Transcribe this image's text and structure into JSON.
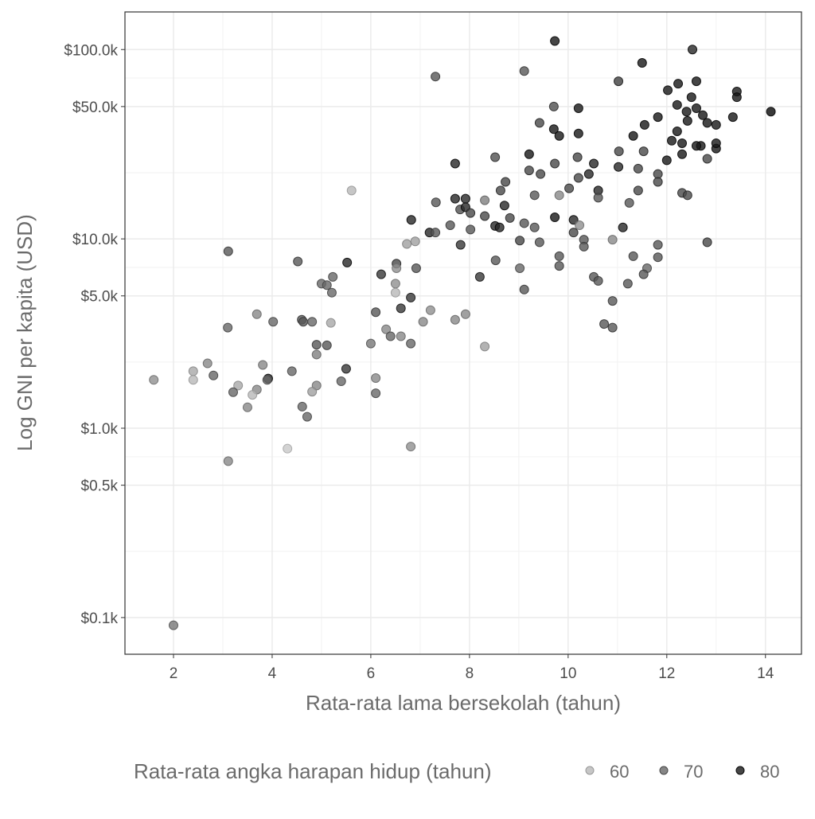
{
  "chart_data": {
    "type": "scatter",
    "title": "",
    "xlabel": "Rata-rata lama bersekolah (tahun)",
    "ylabel": "Log GNI per kapita (USD)",
    "x_scale": "linear",
    "y_scale": "log10",
    "xlim": [
      1.016,
      14.73
    ],
    "ylim": [
      64,
      158000
    ],
    "x_ticks": [
      2,
      4,
      6,
      8,
      10,
      12,
      14
    ],
    "x_tick_labels": [
      "2",
      "4",
      "6",
      "8",
      "10",
      "12",
      "14"
    ],
    "y_ticks": [
      100,
      500,
      1000,
      5000,
      10000,
      50000,
      100000
    ],
    "y_tick_labels": [
      "$0.1k",
      "$0.5k",
      "$1.0k",
      "$5.0k",
      "$10.0k",
      "$50.0k",
      "$100.0k"
    ],
    "grid": true,
    "legend": {
      "title": "Rata-rata angka harapan hidup (tahun)",
      "placement": "bottom",
      "entries": [
        {
          "label": "60",
          "value": 60
        },
        {
          "label": "70",
          "value": 70
        },
        {
          "label": "80",
          "value": 80
        }
      ]
    },
    "colors": {
      "low": "#c4c4c4",
      "high": "#0a0a0a",
      "panel_border": "#333333",
      "grid": "#ebebeb"
    },
    "points": [
      [
        9.73,
        111000,
        80
      ],
      [
        11.5,
        85000,
        80
      ],
      [
        12.52,
        100000,
        78
      ],
      [
        7.31,
        72000,
        72
      ],
      [
        9.11,
        77000,
        72
      ],
      [
        11.02,
        68000,
        75
      ],
      [
        12.6,
        68000,
        80
      ],
      [
        12.02,
        61000,
        80
      ],
      [
        12.23,
        66000,
        80
      ],
      [
        13.42,
        60000,
        80
      ],
      [
        13.42,
        56000,
        80
      ],
      [
        14.11,
        47000,
        82
      ],
      [
        9.71,
        50000,
        73
      ],
      [
        10.21,
        49000,
        80
      ],
      [
        12.21,
        51000,
        80
      ],
      [
        12.4,
        47000,
        80
      ],
      [
        12.6,
        49000,
        80
      ],
      [
        12.73,
        45000,
        80
      ],
      [
        12.5,
        56000,
        80
      ],
      [
        11.82,
        44000,
        80
      ],
      [
        13.34,
        44000,
        80
      ],
      [
        12.82,
        41000,
        80
      ],
      [
        13.0,
        40000,
        80
      ],
      [
        12.42,
        42000,
        80
      ],
      [
        9.42,
        41000,
        74
      ],
      [
        11.55,
        40000,
        80
      ],
      [
        9.71,
        38000,
        80
      ],
      [
        9.82,
        35000,
        80
      ],
      [
        10.21,
        36000,
        80
      ],
      [
        12.21,
        37000,
        80
      ],
      [
        11.32,
        35000,
        80
      ],
      [
        12.1,
        33000,
        80
      ],
      [
        12.31,
        32000,
        80
      ],
      [
        12.69,
        31000,
        80
      ],
      [
        12.6,
        31000,
        80
      ],
      [
        13.0,
        30000,
        80
      ],
      [
        13.0,
        32000,
        80
      ],
      [
        11.53,
        29000,
        74
      ],
      [
        11.03,
        29000,
        74
      ],
      [
        9.21,
        28000,
        80
      ],
      [
        10.19,
        27000,
        74
      ],
      [
        8.52,
        27000,
        73
      ],
      [
        12.31,
        28000,
        80
      ],
      [
        12.0,
        26000,
        80
      ],
      [
        12.82,
        26500,
        74
      ],
      [
        7.71,
        25000,
        78
      ],
      [
        9.73,
        25000,
        74
      ],
      [
        10.52,
        25000,
        78
      ],
      [
        11.02,
        24000,
        78
      ],
      [
        9.21,
        23000,
        74
      ],
      [
        9.44,
        22000,
        74
      ],
      [
        10.42,
        22000,
        78
      ],
      [
        11.42,
        23500,
        74
      ],
      [
        11.82,
        22000,
        74
      ],
      [
        10.21,
        21000,
        74
      ],
      [
        11.82,
        20000,
        74
      ],
      [
        8.73,
        20000,
        74
      ],
      [
        10.02,
        18500,
        74
      ],
      [
        8.63,
        18000,
        74
      ],
      [
        10.61,
        18000,
        78
      ],
      [
        11.42,
        18000,
        74
      ],
      [
        12.31,
        17500,
        74
      ],
      [
        12.42,
        17000,
        74
      ],
      [
        5.61,
        18000,
        60
      ],
      [
        9.82,
        17000,
        66
      ],
      [
        9.32,
        17000,
        72
      ],
      [
        7.32,
        15600,
        72
      ],
      [
        7.71,
        16300,
        78
      ],
      [
        7.92,
        16300,
        78
      ],
      [
        8.31,
        16000,
        67
      ],
      [
        10.61,
        16500,
        72
      ],
      [
        11.24,
        15500,
        72
      ],
      [
        7.81,
        14300,
        73
      ],
      [
        7.92,
        14700,
        78
      ],
      [
        8.71,
        15000,
        78
      ],
      [
        8.02,
        13700,
        74
      ],
      [
        8.31,
        13200,
        74
      ],
      [
        8.82,
        12900,
        74
      ],
      [
        9.11,
        12100,
        72
      ],
      [
        9.73,
        13000,
        80
      ],
      [
        10.11,
        12600,
        78
      ],
      [
        10.23,
        11800,
        65
      ],
      [
        6.82,
        12600,
        78
      ],
      [
        7.61,
        11800,
        72
      ],
      [
        7.19,
        10800,
        78
      ],
      [
        7.31,
        10800,
        72
      ],
      [
        8.52,
        11700,
        78
      ],
      [
        8.61,
        11500,
        78
      ],
      [
        8.02,
        11200,
        72
      ],
      [
        9.32,
        11500,
        72
      ],
      [
        11.11,
        11500,
        78
      ],
      [
        9.02,
        9800,
        74
      ],
      [
        10.11,
        10800,
        74
      ],
      [
        10.32,
        9900,
        72
      ],
      [
        9.42,
        9600,
        72
      ],
      [
        10.9,
        9900,
        66
      ],
      [
        11.82,
        9300,
        72
      ],
      [
        12.82,
        9600,
        74
      ],
      [
        7.82,
        9300,
        76
      ],
      [
        6.73,
        9400,
        63
      ],
      [
        6.9,
        9700,
        63
      ],
      [
        3.11,
        8600,
        72
      ],
      [
        10.32,
        9100,
        72
      ],
      [
        8.53,
        7700,
        72
      ],
      [
        9.82,
        8100,
        72
      ],
      [
        11.32,
        8100,
        72
      ],
      [
        11.82,
        8000,
        72
      ],
      [
        4.52,
        7600,
        72
      ],
      [
        5.52,
        7500,
        78
      ],
      [
        6.52,
        7400,
        74
      ],
      [
        9.82,
        7200,
        72
      ],
      [
        6.52,
        7000,
        65
      ],
      [
        6.92,
        7000,
        72
      ],
      [
        9.02,
        7000,
        70
      ],
      [
        11.6,
        7000,
        70
      ],
      [
        6.21,
        6500,
        76
      ],
      [
        5.23,
        6300,
        70
      ],
      [
        8.21,
        6300,
        76
      ],
      [
        10.52,
        6300,
        72
      ],
      [
        11.53,
        6500,
        72
      ],
      [
        10.61,
        6000,
        72
      ],
      [
        5.0,
        5800,
        70
      ],
      [
        5.11,
        5700,
        70
      ],
      [
        11.21,
        5800,
        72
      ],
      [
        6.5,
        5800,
        65
      ],
      [
        5.21,
        5200,
        70
      ],
      [
        9.11,
        5400,
        72
      ],
      [
        6.5,
        5200,
        60
      ],
      [
        6.81,
        4900,
        76
      ],
      [
        10.9,
        4700,
        72
      ],
      [
        6.61,
        4300,
        76
      ],
      [
        7.21,
        4200,
        65
      ],
      [
        6.1,
        4100,
        72
      ],
      [
        3.69,
        4000,
        66
      ],
      [
        7.92,
        4000,
        66
      ],
      [
        7.71,
        3740,
        66
      ],
      [
        4.6,
        3740,
        72
      ],
      [
        4.63,
        3650,
        72
      ],
      [
        4.02,
        3650,
        70
      ],
      [
        4.81,
        3650,
        70
      ],
      [
        5.19,
        3600,
        62
      ],
      [
        7.06,
        3650,
        66
      ],
      [
        10.73,
        3550,
        72
      ],
      [
        10.9,
        3400,
        72
      ],
      [
        3.1,
        3400,
        70
      ],
      [
        6.31,
        3330,
        66
      ],
      [
        6.4,
        3060,
        70
      ],
      [
        6.61,
        3060,
        66
      ],
      [
        6.81,
        2800,
        70
      ],
      [
        6.0,
        2800,
        68
      ],
      [
        4.9,
        2760,
        72
      ],
      [
        5.11,
        2740,
        72
      ],
      [
        8.31,
        2700,
        63
      ],
      [
        4.9,
        2450,
        67
      ],
      [
        2.69,
        2200,
        66
      ],
      [
        3.81,
        2160,
        66
      ],
      [
        5.5,
        2060,
        76
      ],
      [
        2.4,
        2000,
        62
      ],
      [
        4.4,
        2000,
        70
      ],
      [
        2.81,
        1900,
        70
      ],
      [
        3.92,
        1830,
        78
      ],
      [
        3.9,
        1800,
        70
      ],
      [
        2.4,
        1800,
        60
      ],
      [
        6.1,
        1840,
        66
      ],
      [
        1.6,
        1800,
        65
      ],
      [
        5.4,
        1770,
        70
      ],
      [
        3.31,
        1680,
        62
      ],
      [
        4.9,
        1680,
        66
      ],
      [
        3.69,
        1600,
        66
      ],
      [
        3.21,
        1550,
        70
      ],
      [
        4.81,
        1560,
        63
      ],
      [
        6.1,
        1530,
        70
      ],
      [
        3.6,
        1500,
        60
      ],
      [
        3.5,
        1290,
        66
      ],
      [
        4.61,
        1300,
        70
      ],
      [
        4.71,
        1150,
        70
      ],
      [
        6.81,
        800,
        65
      ],
      [
        4.31,
        780,
        58
      ],
      [
        3.11,
        670,
        66
      ],
      [
        2.0,
        91,
        68
      ]
    ]
  }
}
